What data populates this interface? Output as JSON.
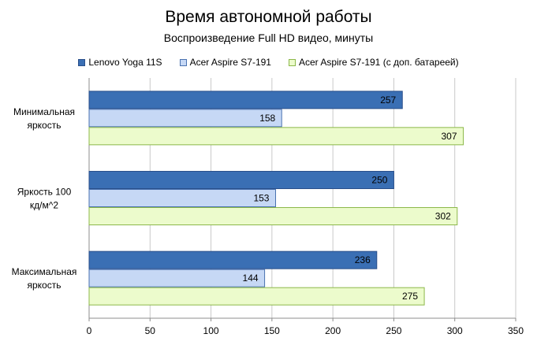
{
  "chart_data": {
    "type": "bar",
    "orientation": "horizontal",
    "title": "Время автономной работы",
    "subtitle": "Воспроизведение  Full HD видео, минуты",
    "categories": [
      [
        "Минимальная",
        "яркость"
      ],
      [
        "Яркость 100",
        "кд/м^2"
      ],
      [
        "Максимальная",
        "яркость"
      ]
    ],
    "series": [
      {
        "name": "Lenovo Yoga 11S",
        "values": [
          257,
          250,
          236
        ],
        "color": "#3a6fb4"
      },
      {
        "name": "Acer Aspire S7-191",
        "values": [
          158,
          153,
          144
        ],
        "color": "#c6d8f5"
      },
      {
        "name": "Acer Aspire S7-191 (с доп. батареей)",
        "values": [
          307,
          302,
          275
        ],
        "color": "#ecfbcc"
      }
    ],
    "xlim": [
      0,
      350
    ],
    "xticks": [
      0,
      50,
      100,
      150,
      200,
      250,
      300,
      350
    ],
    "grid": true,
    "legend_position": "top"
  }
}
